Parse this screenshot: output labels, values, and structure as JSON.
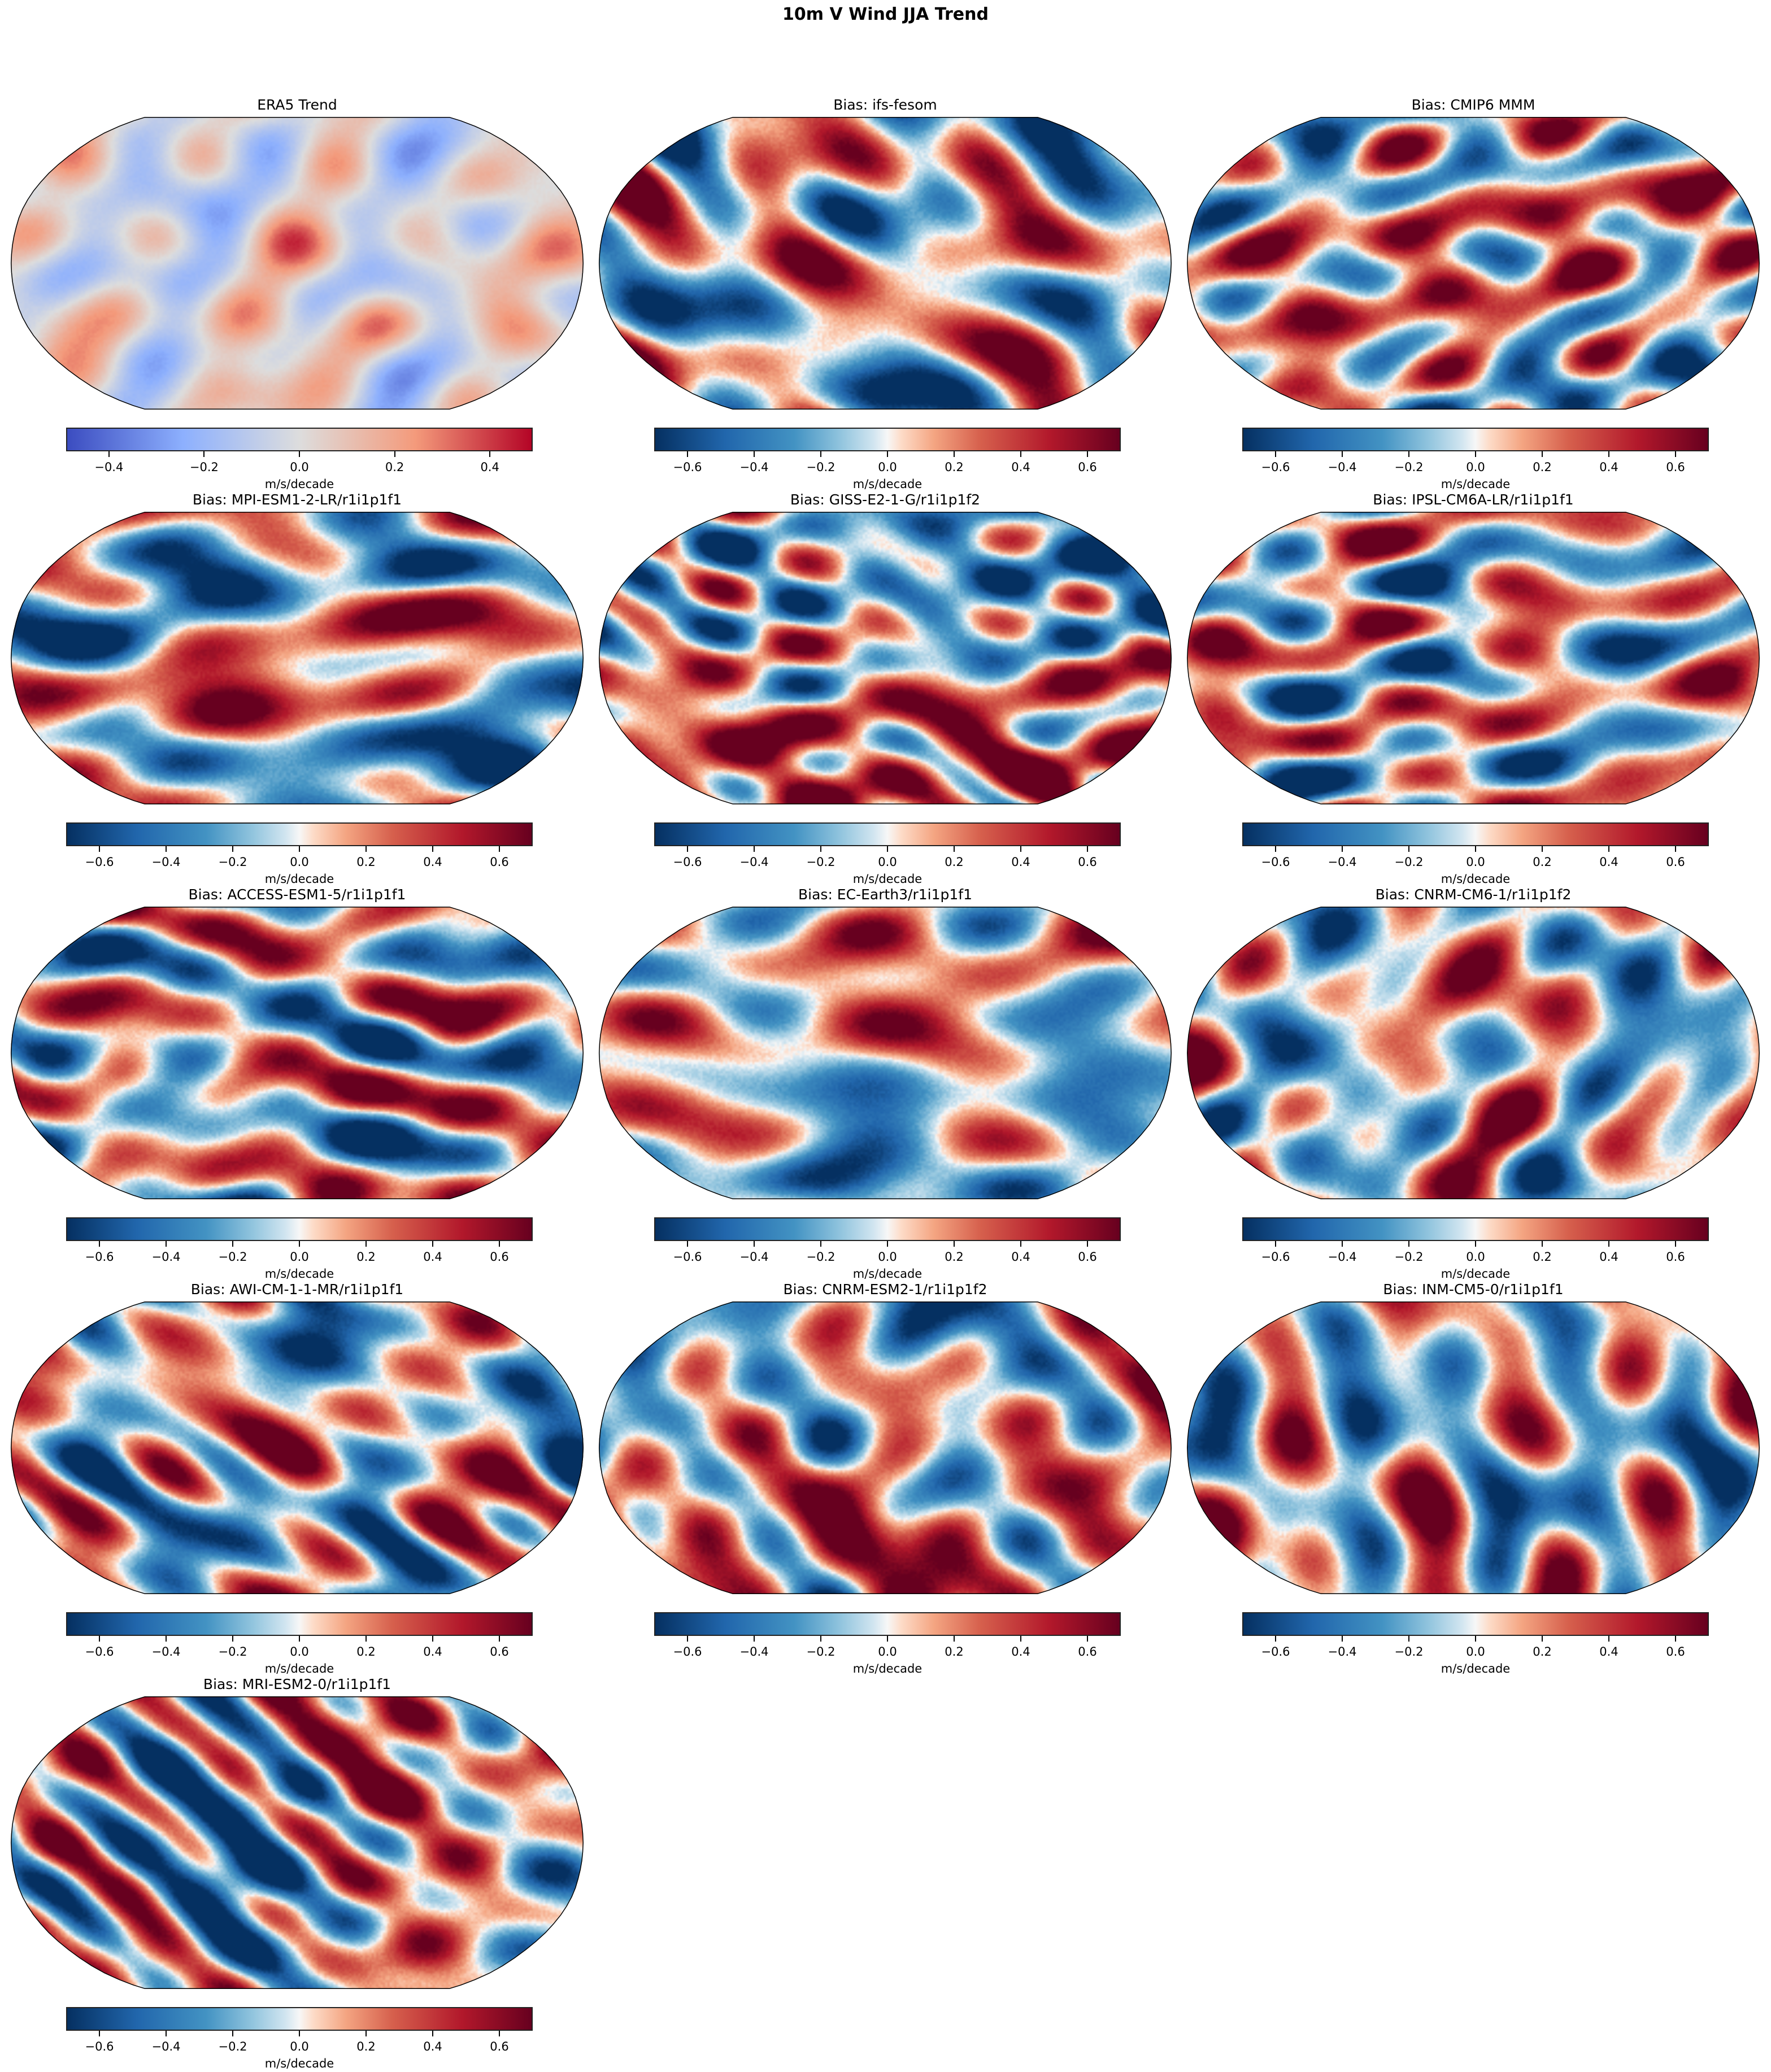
{
  "suptitle": "10m V Wind JJA Trend",
  "chart_data": {
    "type": "heatmap",
    "title": "10m V Wind JJA Trend",
    "projection": "Robinson",
    "panels": [
      {
        "title": "ERA5 Trend",
        "cmap": "coolwarm",
        "vlim": [
          -0.49,
          0.49
        ],
        "ticks": [
          -0.4,
          -0.2,
          0.0,
          0.2,
          0.4
        ],
        "tick_labels": [
          "−0.4",
          "−0.2",
          "0.0",
          "0.2",
          "0.4"
        ],
        "colorbar_label": "m/s/decade"
      },
      {
        "title": "Bias: ifs-fesom",
        "cmap": "RdBu_r",
        "vlim": [
          -0.7,
          0.7
        ],
        "ticks": [
          -0.6,
          -0.4,
          -0.2,
          0.0,
          0.2,
          0.4,
          0.6
        ],
        "tick_labels": [
          "−0.6",
          "−0.4",
          "−0.2",
          "0.0",
          "0.2",
          "0.4",
          "0.6"
        ],
        "colorbar_label": "m/s/decade"
      },
      {
        "title": "Bias: CMIP6 MMM",
        "cmap": "RdBu_r",
        "vlim": [
          -0.7,
          0.7
        ],
        "ticks": [
          -0.6,
          -0.4,
          -0.2,
          0.0,
          0.2,
          0.4,
          0.6
        ],
        "tick_labels": [
          "−0.6",
          "−0.4",
          "−0.2",
          "0.0",
          "0.2",
          "0.4",
          "0.6"
        ],
        "colorbar_label": "m/s/decade"
      },
      {
        "title": "Bias: MPI-ESM1-2-LR/r1i1p1f1",
        "cmap": "RdBu_r",
        "vlim": [
          -0.7,
          0.7
        ],
        "ticks": [
          -0.6,
          -0.4,
          -0.2,
          0.0,
          0.2,
          0.4,
          0.6
        ],
        "tick_labels": [
          "−0.6",
          "−0.4",
          "−0.2",
          "0.0",
          "0.2",
          "0.4",
          "0.6"
        ],
        "colorbar_label": "m/s/decade"
      },
      {
        "title": "Bias: GISS-E2-1-G/r1i1p1f2",
        "cmap": "RdBu_r",
        "vlim": [
          -0.7,
          0.7
        ],
        "ticks": [
          -0.6,
          -0.4,
          -0.2,
          0.0,
          0.2,
          0.4,
          0.6
        ],
        "tick_labels": [
          "−0.6",
          "−0.4",
          "−0.2",
          "0.0",
          "0.2",
          "0.4",
          "0.6"
        ],
        "colorbar_label": "m/s/decade"
      },
      {
        "title": "Bias: IPSL-CM6A-LR/r1i1p1f1",
        "cmap": "RdBu_r",
        "vlim": [
          -0.7,
          0.7
        ],
        "ticks": [
          -0.6,
          -0.4,
          -0.2,
          0.0,
          0.2,
          0.4,
          0.6
        ],
        "tick_labels": [
          "−0.6",
          "−0.4",
          "−0.2",
          "0.0",
          "0.2",
          "0.4",
          "0.6"
        ],
        "colorbar_label": "m/s/decade"
      },
      {
        "title": "Bias: ACCESS-ESM1-5/r1i1p1f1",
        "cmap": "RdBu_r",
        "vlim": [
          -0.7,
          0.7
        ],
        "ticks": [
          -0.6,
          -0.4,
          -0.2,
          0.0,
          0.2,
          0.4,
          0.6
        ],
        "tick_labels": [
          "−0.6",
          "−0.4",
          "−0.2",
          "0.0",
          "0.2",
          "0.4",
          "0.6"
        ],
        "colorbar_label": "m/s/decade"
      },
      {
        "title": "Bias: EC-Earth3/r1i1p1f1",
        "cmap": "RdBu_r",
        "vlim": [
          -0.7,
          0.7
        ],
        "ticks": [
          -0.6,
          -0.4,
          -0.2,
          0.0,
          0.2,
          0.4,
          0.6
        ],
        "tick_labels": [
          "−0.6",
          "−0.4",
          "−0.2",
          "0.0",
          "0.2",
          "0.4",
          "0.6"
        ],
        "colorbar_label": "m/s/decade"
      },
      {
        "title": "Bias: CNRM-CM6-1/r1i1p1f2",
        "cmap": "RdBu_r",
        "vlim": [
          -0.7,
          0.7
        ],
        "ticks": [
          -0.6,
          -0.4,
          -0.2,
          0.0,
          0.2,
          0.4,
          0.6
        ],
        "tick_labels": [
          "−0.6",
          "−0.4",
          "−0.2",
          "0.0",
          "0.2",
          "0.4",
          "0.6"
        ],
        "colorbar_label": "m/s/decade"
      },
      {
        "title": "Bias: AWI-CM-1-1-MR/r1i1p1f1",
        "cmap": "RdBu_r",
        "vlim": [
          -0.7,
          0.7
        ],
        "ticks": [
          -0.6,
          -0.4,
          -0.2,
          0.0,
          0.2,
          0.4,
          0.6
        ],
        "tick_labels": [
          "−0.6",
          "−0.4",
          "−0.2",
          "0.0",
          "0.2",
          "0.4",
          "0.6"
        ],
        "colorbar_label": "m/s/decade"
      },
      {
        "title": "Bias: CNRM-ESM2-1/r1i1p1f2",
        "cmap": "RdBu_r",
        "vlim": [
          -0.7,
          0.7
        ],
        "ticks": [
          -0.6,
          -0.4,
          -0.2,
          0.0,
          0.2,
          0.4,
          0.6
        ],
        "tick_labels": [
          "−0.6",
          "−0.4",
          "−0.2",
          "0.0",
          "0.2",
          "0.4",
          "0.6"
        ],
        "colorbar_label": "m/s/decade"
      },
      {
        "title": "Bias: INM-CM5-0/r1i1p1f1",
        "cmap": "RdBu_r",
        "vlim": [
          -0.7,
          0.7
        ],
        "ticks": [
          -0.6,
          -0.4,
          -0.2,
          0.0,
          0.2,
          0.4,
          0.6
        ],
        "tick_labels": [
          "−0.6",
          "−0.4",
          "−0.2",
          "0.0",
          "0.2",
          "0.4",
          "0.6"
        ],
        "colorbar_label": "m/s/decade"
      },
      {
        "title": "Bias: MRI-ESM2-0/r1i1p1f1",
        "cmap": "RdBu_r",
        "vlim": [
          -0.7,
          0.7
        ],
        "ticks": [
          -0.6,
          -0.4,
          -0.2,
          0.0,
          0.2,
          0.4,
          0.6
        ],
        "tick_labels": [
          "−0.6",
          "−0.4",
          "−0.2",
          "0.0",
          "0.2",
          "0.4",
          "0.6"
        ],
        "colorbar_label": "m/s/decade"
      }
    ]
  }
}
